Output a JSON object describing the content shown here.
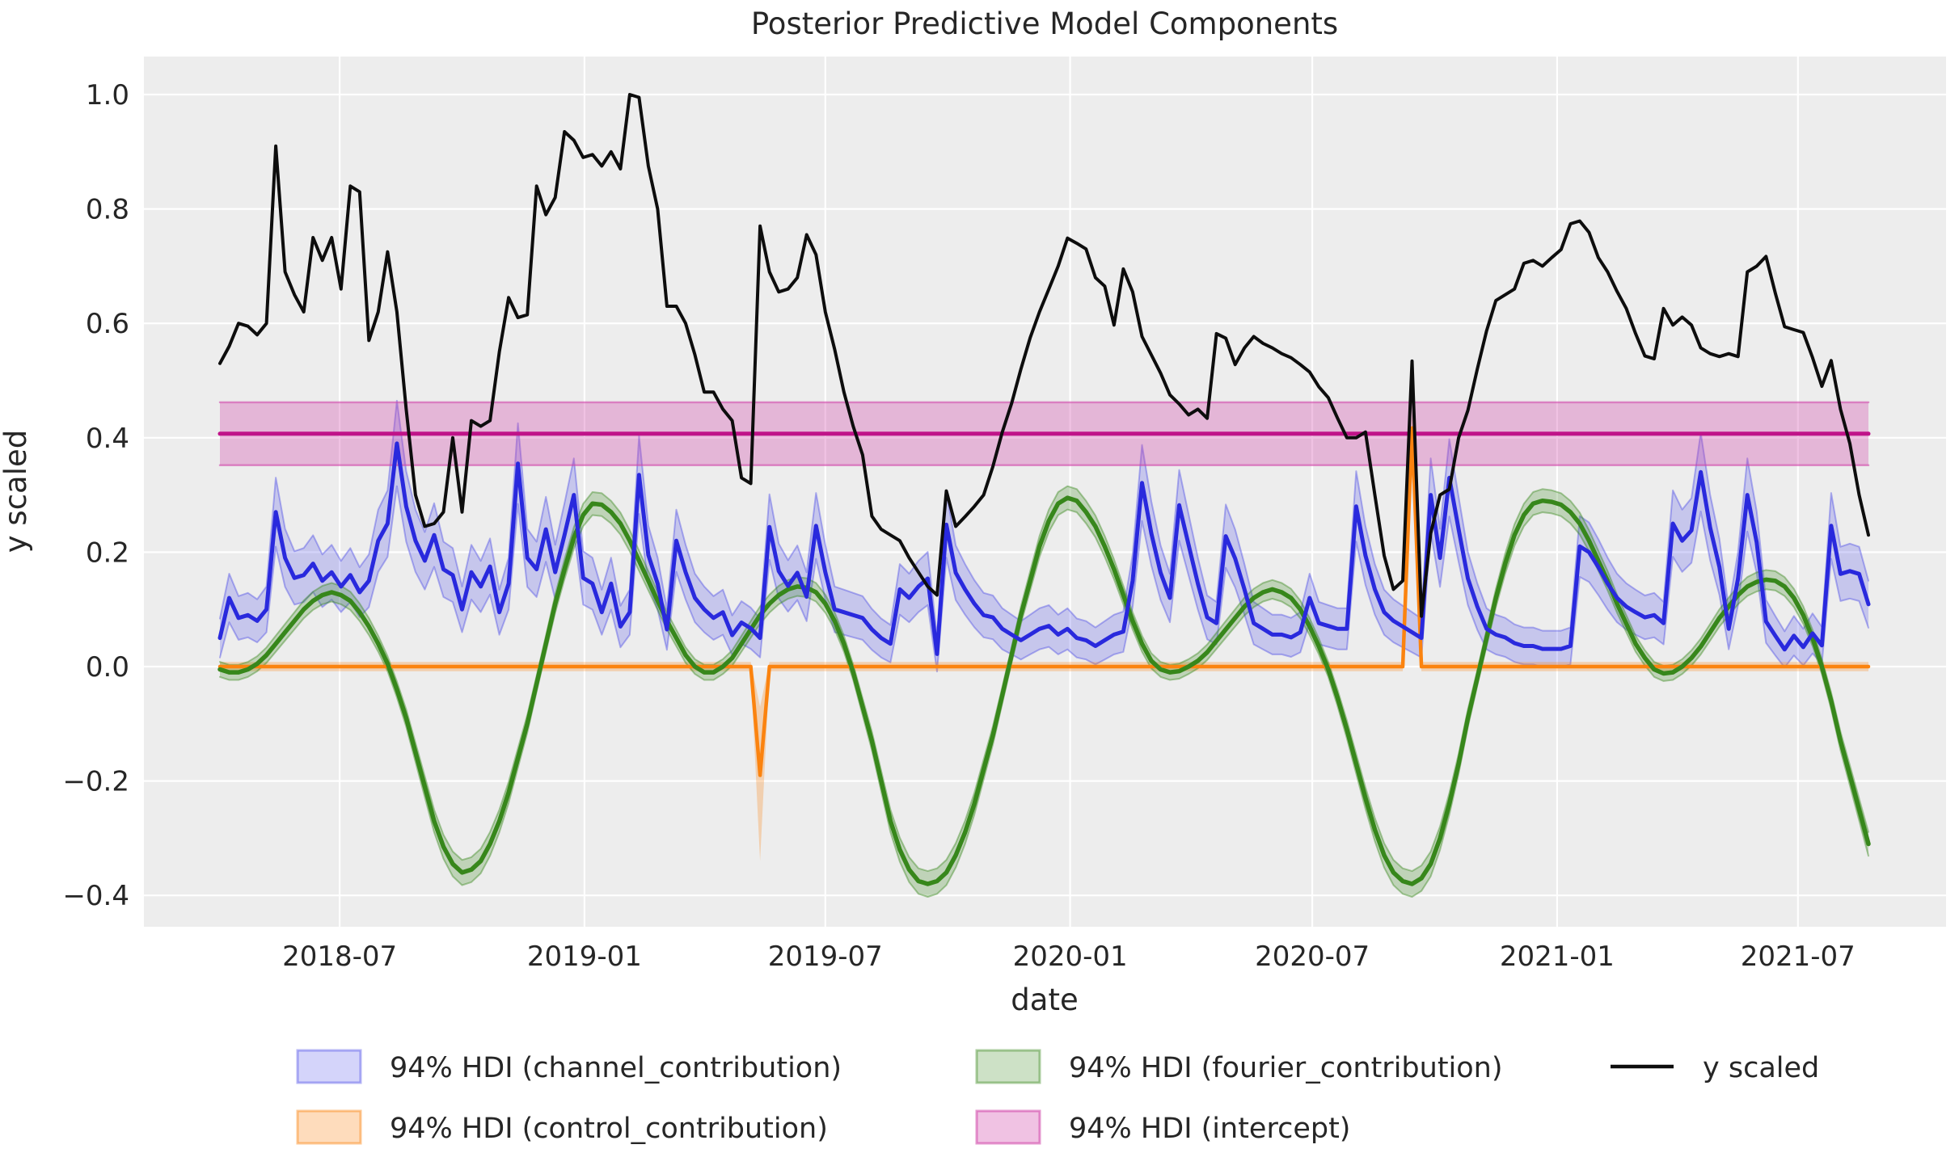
{
  "title": "Posterior Predictive Model Components",
  "axes": {
    "xlabel": "date",
    "ylabel": "y scaled"
  },
  "colors": {
    "figure_bg": "#ffffff",
    "plot_bg": "#ededed",
    "grid": "#ffffff",
    "text": "#262626",
    "y_scaled_line": "#0d0d0d",
    "channel_line": "#2929dd",
    "channel_fill": "rgba(60,60,230,0.22)",
    "channel_edge": "rgba(60,60,230,0.38)",
    "control_line": "#fb830f",
    "control_fill": "rgba(251,131,15,0.28)",
    "control_edge": "rgba(251,131,15,0.45)",
    "fourier_line": "#37871b",
    "fourier_fill": "rgba(55,135,27,0.25)",
    "fourier_edge": "rgba(55,135,27,0.42)",
    "intercept_line": "#c01389",
    "intercept_fill": "rgba(208,66,167,0.32)",
    "intercept_edge": "rgba(208,66,167,0.55)"
  },
  "legend": [
    {
      "label": "94% HDI (channel_contribution)",
      "swatch": "band",
      "color_key": "channel",
      "col": 0,
      "row": 0
    },
    {
      "label": "94% HDI (control_contribution)",
      "swatch": "band",
      "color_key": "control",
      "col": 0,
      "row": 1
    },
    {
      "label": "94% HDI (fourier_contribution)",
      "swatch": "band",
      "color_key": "fourier",
      "col": 1,
      "row": 0
    },
    {
      "label": "94% HDI (intercept)",
      "swatch": "band",
      "color_key": "intercept",
      "col": 1,
      "row": 1
    },
    {
      "label": "y scaled",
      "swatch": "line",
      "color_key": "y_scaled",
      "col": 2,
      "row": 0
    }
  ],
  "chart_data": {
    "type": "line",
    "title": "Posterior Predictive Model Components",
    "xlabel": "date",
    "ylabel": "y scaled",
    "x_start_date": "2018-04-02",
    "x_freq_days": 7,
    "n_points": 178,
    "x_tick_labels": [
      "2018-07",
      "2019-01",
      "2019-07",
      "2020-01",
      "2020-07",
      "2021-01",
      "2021-07"
    ],
    "x_tick_week_index": [
      12.857,
      39.143,
      65.0,
      91.286,
      117.286,
      143.571,
      169.429
    ],
    "y_ticks": [
      1.0,
      0.8,
      0.6,
      0.4,
      0.2,
      0.0,
      -0.2,
      -0.4
    ],
    "ylim": [
      -0.455,
      1.066
    ],
    "grid": true,
    "legend_position": "below",
    "series": [
      {
        "name": "y scaled",
        "kind": "line",
        "values": [
          0.53,
          0.56,
          0.6,
          0.595,
          0.58,
          0.6,
          0.91,
          0.69,
          0.65,
          0.62,
          0.75,
          0.71,
          0.75,
          0.66,
          0.84,
          0.83,
          0.57,
          0.62,
          0.725,
          0.62,
          0.45,
          0.3,
          0.245,
          0.25,
          0.27,
          0.4,
          0.27,
          0.43,
          0.42,
          0.43,
          0.55,
          0.645,
          0.61,
          0.615,
          0.84,
          0.79,
          0.82,
          0.935,
          0.92,
          0.89,
          0.895,
          0.875,
          0.9,
          0.87,
          1.0,
          0.995,
          0.875,
          0.8,
          0.63,
          0.63,
          0.6,
          0.545,
          0.48,
          0.48,
          0.45,
          0.43,
          0.33,
          0.32,
          0.77,
          0.69,
          0.655,
          0.66,
          0.68,
          0.755,
          0.72,
          0.62,
          0.555,
          0.48,
          0.42,
          0.37,
          0.263,
          0.24,
          0.23,
          0.22,
          0.19,
          0.165,
          0.14,
          0.125,
          0.307,
          0.245,
          0.262,
          0.28,
          0.3,
          0.35,
          0.41,
          0.46,
          0.52,
          0.575,
          0.62,
          0.66,
          0.7,
          0.749,
          0.74,
          0.73,
          0.68,
          0.665,
          0.597,
          0.695,
          0.655,
          0.577,
          0.545,
          0.513,
          0.475,
          0.459,
          0.44,
          0.45,
          0.434,
          0.582,
          0.574,
          0.528,
          0.557,
          0.577,
          0.565,
          0.557,
          0.547,
          0.54,
          0.528,
          0.515,
          0.489,
          0.47,
          0.434,
          0.4,
          0.4,
          0.41,
          0.3,
          0.194,
          0.135,
          0.15,
          0.534,
          0.088,
          0.233,
          0.3,
          0.31,
          0.4,
          0.448,
          0.52,
          0.587,
          0.64,
          0.65,
          0.66,
          0.705,
          0.71,
          0.7,
          0.715,
          0.729,
          0.774,
          0.779,
          0.759,
          0.715,
          0.69,
          0.656,
          0.626,
          0.582,
          0.543,
          0.538,
          0.626,
          0.597,
          0.611,
          0.597,
          0.557,
          0.547,
          0.542,
          0.547,
          0.542,
          0.69,
          0.7,
          0.717,
          0.653,
          0.594,
          0.589,
          0.584,
          0.54,
          0.49,
          0.535,
          0.45,
          0.39,
          0.3,
          0.23
        ]
      },
      {
        "name": "94% HDI (channel_contribution)",
        "kind": "line+band",
        "band_rule": {
          "halfwidth_base": 0.028,
          "halfwidth_scale": 0.12
        },
        "values": [
          0.05,
          0.12,
          0.085,
          0.09,
          0.08,
          0.1,
          0.27,
          0.19,
          0.155,
          0.16,
          0.18,
          0.15,
          0.165,
          0.14,
          0.16,
          0.13,
          0.15,
          0.22,
          0.25,
          0.39,
          0.28,
          0.22,
          0.185,
          0.23,
          0.17,
          0.16,
          0.1,
          0.165,
          0.14,
          0.175,
          0.095,
          0.145,
          0.355,
          0.19,
          0.17,
          0.24,
          0.165,
          0.23,
          0.3,
          0.155,
          0.145,
          0.095,
          0.145,
          0.07,
          0.095,
          0.335,
          0.195,
          0.145,
          0.065,
          0.22,
          0.165,
          0.12,
          0.1,
          0.085,
          0.095,
          0.055,
          0.077,
          0.067,
          0.05,
          0.244,
          0.167,
          0.141,
          0.164,
          0.122,
          0.246,
          0.165,
          0.1,
          0.095,
          0.09,
          0.085,
          0.065,
          0.05,
          0.04,
          0.135,
          0.12,
          0.14,
          0.154,
          0.022,
          0.248,
          0.164,
          0.135,
          0.11,
          0.09,
          0.086,
          0.066,
          0.056,
          0.046,
          0.056,
          0.066,
          0.071,
          0.056,
          0.066,
          0.05,
          0.046,
          0.036,
          0.046,
          0.056,
          0.061,
          0.15,
          0.321,
          0.233,
          0.164,
          0.12,
          0.282,
          0.213,
          0.145,
          0.086,
          0.076,
          0.228,
          0.189,
          0.135,
          0.076,
          0.066,
          0.056,
          0.056,
          0.051,
          0.06,
          0.12,
          0.076,
          0.071,
          0.066,
          0.066,
          0.28,
          0.194,
          0.135,
          0.095,
          0.08,
          0.07,
          0.06,
          0.05,
          0.3,
          0.19,
          0.33,
          0.24,
          0.154,
          0.105,
          0.066,
          0.056,
          0.051,
          0.041,
          0.036,
          0.036,
          0.031,
          0.031,
          0.031,
          0.036,
          0.21,
          0.2,
          0.174,
          0.145,
          0.12,
          0.105,
          0.095,
          0.086,
          0.09,
          0.076,
          0.25,
          0.22,
          0.238,
          0.34,
          0.243,
          0.174,
          0.066,
          0.154,
          0.3,
          0.217,
          0.079,
          0.054,
          0.03,
          0.054,
          0.034,
          0.058,
          0.037,
          0.246,
          0.162,
          0.167,
          0.162,
          0.109
        ]
      },
      {
        "name": "94% HDI (control_contribution)",
        "kind": "line+band",
        "base_value": 0.0,
        "base_halfwidth": 0.008,
        "events": [
          {
            "index": 58,
            "date": "2019-05-13",
            "value": -0.19,
            "band": [
              -0.34,
              -0.07
            ]
          },
          {
            "index": 128,
            "date": "2020-09-14",
            "value": 0.417,
            "band": [
              0.38,
              0.445
            ]
          }
        ]
      },
      {
        "name": "94% HDI (fourier_contribution)",
        "kind": "line+band",
        "band_rule": {
          "halfwidth_base": 0.013,
          "halfwidth_scale": 0.025
        },
        "values": [
          -0.005,
          -0.01,
          -0.01,
          -0.005,
          0.005,
          0.02,
          0.04,
          0.06,
          0.08,
          0.1,
          0.115,
          0.125,
          0.13,
          0.125,
          0.115,
          0.095,
          0.07,
          0.04,
          0.005,
          -0.04,
          -0.09,
          -0.15,
          -0.21,
          -0.27,
          -0.315,
          -0.345,
          -0.36,
          -0.355,
          -0.34,
          -0.31,
          -0.27,
          -0.22,
          -0.16,
          -0.1,
          -0.03,
          0.04,
          0.11,
          0.17,
          0.225,
          0.265,
          0.285,
          0.283,
          0.27,
          0.25,
          0.22,
          0.185,
          0.15,
          0.115,
          0.08,
          0.05,
          0.02,
          0.0,
          -0.01,
          -0.01,
          0.0,
          0.015,
          0.04,
          0.065,
          0.09,
          0.11,
          0.125,
          0.135,
          0.14,
          0.138,
          0.13,
          0.11,
          0.08,
          0.04,
          -0.01,
          -0.07,
          -0.13,
          -0.2,
          -0.27,
          -0.32,
          -0.355,
          -0.375,
          -0.38,
          -0.375,
          -0.36,
          -0.33,
          -0.29,
          -0.24,
          -0.18,
          -0.12,
          -0.05,
          0.02,
          0.09,
          0.15,
          0.21,
          0.255,
          0.285,
          0.295,
          0.29,
          0.27,
          0.245,
          0.21,
          0.17,
          0.125,
          0.08,
          0.04,
          0.01,
          -0.005,
          -0.01,
          -0.008,
          0.0,
          0.01,
          0.025,
          0.045,
          0.065,
          0.085,
          0.105,
          0.12,
          0.13,
          0.135,
          0.13,
          0.12,
          0.1,
          0.07,
          0.035,
          -0.005,
          -0.055,
          -0.11,
          -0.17,
          -0.23,
          -0.285,
          -0.33,
          -0.36,
          -0.375,
          -0.38,
          -0.37,
          -0.345,
          -0.3,
          -0.24,
          -0.17,
          -0.09,
          -0.02,
          0.05,
          0.12,
          0.18,
          0.23,
          0.265,
          0.285,
          0.29,
          0.288,
          0.283,
          0.27,
          0.25,
          0.22,
          0.185,
          0.15,
          0.11,
          0.075,
          0.04,
          0.015,
          -0.005,
          -0.012,
          -0.01,
          0.0,
          0.015,
          0.035,
          0.06,
          0.085,
          0.105,
          0.125,
          0.14,
          0.148,
          0.152,
          0.15,
          0.14,
          0.12,
          0.09,
          0.05,
          0.0,
          -0.06,
          -0.13,
          -0.19,
          -0.25,
          -0.31
        ]
      },
      {
        "name": "94% HDI (intercept)",
        "kind": "line+band",
        "mean": 0.407,
        "band": [
          0.352,
          0.462
        ]
      }
    ]
  }
}
